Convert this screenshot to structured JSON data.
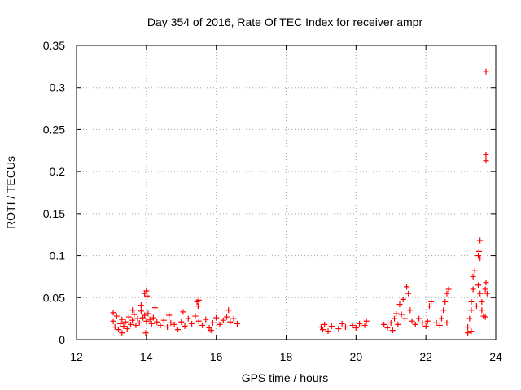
{
  "chart_data": {
    "type": "scatter",
    "title": "Day 354 of 2016, Rate Of TEC Index for receiver ampr",
    "xlabel": "GPS time / hours",
    "ylabel": "ROTI / TECUs",
    "xlim": [
      12,
      24
    ],
    "ylim": [
      0,
      0.35
    ],
    "xticks": [
      12,
      14,
      16,
      18,
      20,
      22,
      24
    ],
    "xtick_labels": [
      "12",
      "14",
      "16",
      "18",
      "20",
      "22",
      "24"
    ],
    "yticks": [
      0,
      0.05,
      0.1,
      0.15,
      0.2,
      0.25,
      0.3,
      0.35
    ],
    "ytick_labels": [
      "0",
      "0.05",
      "0.1",
      "0.15",
      "0.2",
      "0.25",
      "0.3",
      "0.35"
    ],
    "grid": true,
    "marker": "+",
    "color": "#ff0000",
    "series": [
      {
        "name": "ROTI",
        "points": [
          [
            13.05,
            0.022
          ],
          [
            13.1,
            0.015
          ],
          [
            13.15,
            0.028
          ],
          [
            13.2,
            0.012
          ],
          [
            13.25,
            0.019
          ],
          [
            13.3,
            0.024
          ],
          [
            13.35,
            0.016
          ],
          [
            13.4,
            0.021
          ],
          [
            13.45,
            0.013
          ],
          [
            13.5,
            0.027
          ],
          [
            13.55,
            0.018
          ],
          [
            13.6,
            0.023
          ],
          [
            13.65,
            0.03
          ],
          [
            13.7,
            0.017
          ],
          [
            13.75,
            0.025
          ],
          [
            13.8,
            0.02
          ],
          [
            13.85,
            0.034
          ],
          [
            13.9,
            0.026
          ],
          [
            13.95,
            0.029
          ],
          [
            14.0,
            0.022
          ],
          [
            14.05,
            0.031
          ],
          [
            14.1,
            0.024
          ],
          [
            14.15,
            0.019
          ],
          [
            14.2,
            0.026
          ],
          [
            14.3,
            0.021
          ],
          [
            14.4,
            0.017
          ],
          [
            14.5,
            0.023
          ],
          [
            14.6,
            0.015
          ],
          [
            14.7,
            0.02
          ],
          [
            14.8,
            0.018
          ],
          [
            14.9,
            0.012
          ],
          [
            15.0,
            0.021
          ],
          [
            15.1,
            0.016
          ],
          [
            15.2,
            0.025
          ],
          [
            15.3,
            0.019
          ],
          [
            15.4,
            0.028
          ],
          [
            15.45,
            0.045
          ],
          [
            15.5,
            0.022
          ],
          [
            15.6,
            0.017
          ],
          [
            15.7,
            0.024
          ],
          [
            15.8,
            0.014
          ],
          [
            15.9,
            0.02
          ],
          [
            16.0,
            0.026
          ],
          [
            16.1,
            0.018
          ],
          [
            16.2,
            0.023
          ],
          [
            16.3,
            0.027
          ],
          [
            16.4,
            0.021
          ],
          [
            16.5,
            0.025
          ],
          [
            16.6,
            0.019
          ],
          [
            13.05,
            0.032
          ],
          [
            13.3,
            0.008
          ],
          [
            13.6,
            0.035
          ],
          [
            13.85,
            0.041
          ],
          [
            13.95,
            0.055
          ],
          [
            14.0,
            0.058
          ],
          [
            14.02,
            0.052
          ],
          [
            13.98,
            0.008
          ],
          [
            14.25,
            0.038
          ],
          [
            15.05,
            0.033
          ],
          [
            15.48,
            0.04
          ],
          [
            15.5,
            0.047
          ],
          [
            16.35,
            0.035
          ],
          [
            15.85,
            0.011
          ],
          [
            14.65,
            0.029
          ],
          [
            19.0,
            0.015
          ],
          [
            19.05,
            0.012
          ],
          [
            19.1,
            0.018
          ],
          [
            19.2,
            0.01
          ],
          [
            19.3,
            0.016
          ],
          [
            19.5,
            0.013
          ],
          [
            19.6,
            0.019
          ],
          [
            19.7,
            0.015
          ],
          [
            19.9,
            0.017
          ],
          [
            20.0,
            0.014
          ],
          [
            20.1,
            0.019
          ],
          [
            20.3,
            0.022
          ],
          [
            20.25,
            0.017
          ],
          [
            20.8,
            0.018
          ],
          [
            20.9,
            0.014
          ],
          [
            21.0,
            0.02
          ],
          [
            21.05,
            0.011
          ],
          [
            21.1,
            0.025
          ],
          [
            21.15,
            0.031
          ],
          [
            21.2,
            0.018
          ],
          [
            21.25,
            0.042
          ],
          [
            21.3,
            0.03
          ],
          [
            21.35,
            0.048
          ],
          [
            21.4,
            0.025
          ],
          [
            21.45,
            0.063
          ],
          [
            21.5,
            0.055
          ],
          [
            21.55,
            0.035
          ],
          [
            21.6,
            0.022
          ],
          [
            21.7,
            0.018
          ],
          [
            21.8,
            0.025
          ],
          [
            21.9,
            0.02
          ],
          [
            22.0,
            0.016
          ],
          [
            22.05,
            0.022
          ],
          [
            22.1,
            0.04
          ],
          [
            22.15,
            0.045
          ],
          [
            22.3,
            0.02
          ],
          [
            22.4,
            0.017
          ],
          [
            22.45,
            0.025
          ],
          [
            22.5,
            0.035
          ],
          [
            22.55,
            0.045
          ],
          [
            22.6,
            0.055
          ],
          [
            22.65,
            0.06
          ],
          [
            22.6,
            0.02
          ],
          [
            23.2,
            0.015
          ],
          [
            23.25,
            0.025
          ],
          [
            23.3,
            0.035
          ],
          [
            23.3,
            0.045
          ],
          [
            23.35,
            0.06
          ],
          [
            23.35,
            0.075
          ],
          [
            23.4,
            0.082
          ],
          [
            23.45,
            0.04
          ],
          [
            23.5,
            0.1
          ],
          [
            23.52,
            0.105
          ],
          [
            23.55,
            0.118
          ],
          [
            23.55,
            0.097
          ],
          [
            23.5,
            0.065
          ],
          [
            23.55,
            0.055
          ],
          [
            23.6,
            0.045
          ],
          [
            23.6,
            0.035
          ],
          [
            23.65,
            0.028
          ],
          [
            23.7,
            0.06
          ],
          [
            23.72,
            0.068
          ],
          [
            23.75,
            0.055
          ],
          [
            23.7,
            0.027
          ],
          [
            23.3,
            0.01
          ],
          [
            23.2,
            0.008
          ],
          [
            23.72,
            0.319
          ],
          [
            23.72,
            0.22
          ],
          [
            23.72,
            0.213
          ]
        ]
      }
    ]
  }
}
